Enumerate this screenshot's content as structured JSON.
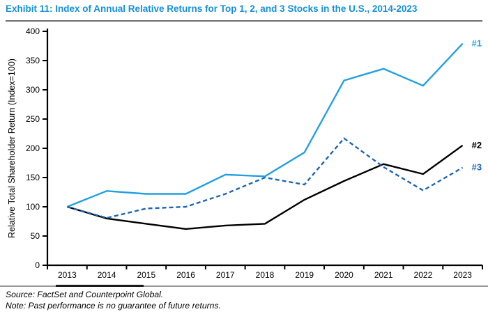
{
  "title": "Exhibit 11: Index of Annual Relative Returns for Top 1, 2, and 3 Stocks in the U.S., 2014-2023",
  "footer": {
    "source_note": "Source: FactSet and Counterpoint Global.",
    "performance_note": "Note: Past performance is no guarantee of future returns."
  },
  "colors": {
    "title_blue": "#1590D8",
    "line1_blue": "#22A0E2",
    "line2_black": "#000000",
    "line3_blue": "#1D64B6",
    "axis_black": "#000000",
    "rule_gray": "#9a9a9a"
  },
  "chart_data": {
    "type": "line",
    "title": "Exhibit 11: Index of Annual Relative Returns for Top 1, 2, and 3 Stocks in the U.S., 2014-2023",
    "xlabel": "",
    "ylabel": "Relative Total Shareholder Return (Index=100)",
    "ylim": [
      0,
      400
    ],
    "ytick_step": 50,
    "grid": false,
    "legend_position": "line-end-labels",
    "categories": [
      "2013",
      "2014",
      "2015",
      "2016",
      "2017",
      "2018",
      "2019",
      "2020",
      "2021",
      "2022",
      "2023"
    ],
    "series": [
      {
        "name": "#1",
        "color": "#22A0E2",
        "style": "solid",
        "values": [
          100,
          127,
          122,
          122,
          155,
          152,
          193,
          316,
          336,
          307,
          379
        ]
      },
      {
        "name": "#2",
        "color": "#000000",
        "style": "solid",
        "values": [
          100,
          80,
          71,
          62,
          68,
          71,
          112,
          144,
          173,
          156,
          205
        ]
      },
      {
        "name": "#3",
        "color": "#1D64B6",
        "style": "dashed",
        "values": [
          100,
          81,
          97,
          100,
          122,
          150,
          138,
          217,
          168,
          128,
          167
        ]
      }
    ]
  }
}
